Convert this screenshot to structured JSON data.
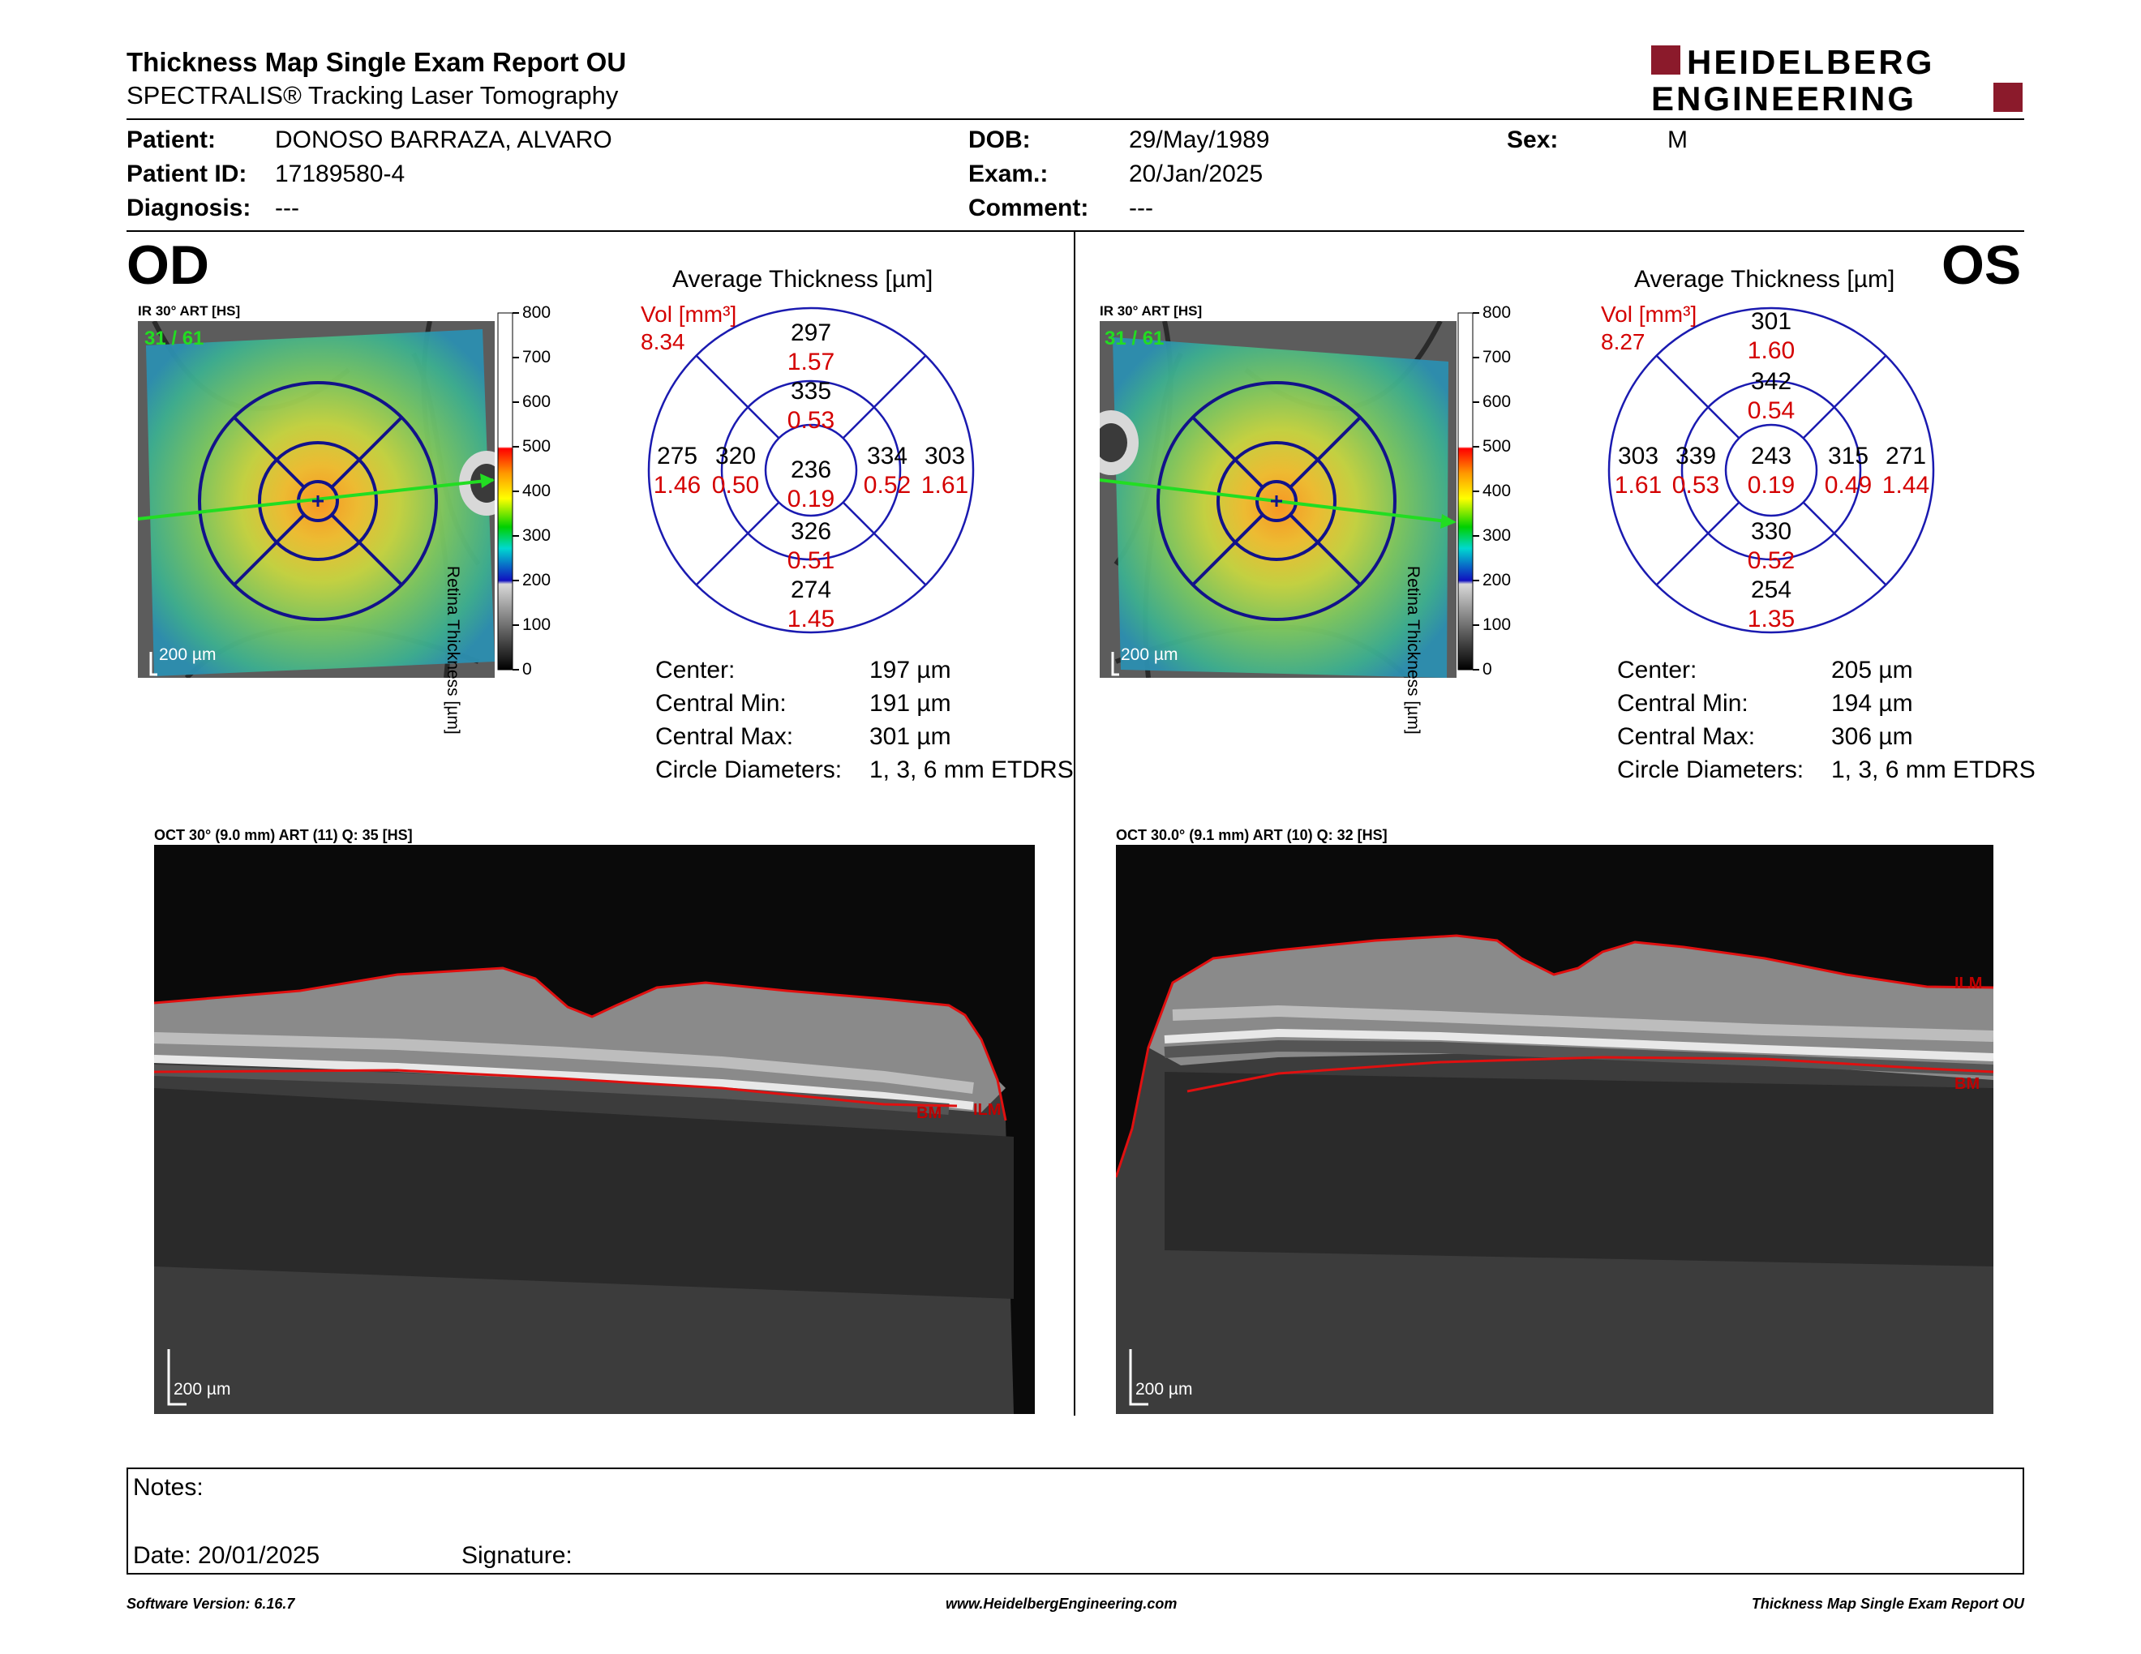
{
  "header": {
    "title": "Thickness Map Single Exam Report OU",
    "subtitle": "SPECTRALIS® Tracking Laser Tomography",
    "logo_line1": "HEIDELBERG",
    "logo_line2": "ENGINEERING"
  },
  "patient": {
    "patient_label": "Patient:",
    "patient_value": "DONOSO BARRAZA, ALVARO",
    "id_label": "Patient ID:",
    "id_value": "17189580-4",
    "diagnosis_label": "Diagnosis:",
    "diagnosis_value": "---",
    "dob_label": "DOB:",
    "dob_value": "29/May/1989",
    "exam_label": "Exam.:",
    "exam_value": "20/Jan/2025",
    "comment_label": "Comment:",
    "comment_value": "---",
    "sex_label": "Sex:",
    "sex_value": "M"
  },
  "scale_ticks": [
    "800",
    "700",
    "600",
    "500",
    "400",
    "300",
    "200",
    "100",
    "0"
  ],
  "scale_axis_label": "Retina Thickness [µm]",
  "colors": {
    "circle": "#1a1ab0",
    "volume": "#d40000",
    "seg_line": "#e01010",
    "scan_arrow": "#22dd22"
  },
  "od": {
    "eye_label": "OD",
    "ir_caption": "IR 30° ART [HS]",
    "ir_frames": "31 / 61",
    "ir_scale": "200 µm",
    "avg_title": "Average Thickness [µm]",
    "vol_label": "Vol [mm³]",
    "vol_total": "8.34",
    "sectors": {
      "center": {
        "t": "236",
        "v": "0.19"
      },
      "inner_sup": {
        "t": "335",
        "v": "0.53"
      },
      "inner_inf": {
        "t": "326",
        "v": "0.51"
      },
      "inner_left": {
        "t": "320",
        "v": "0.50"
      },
      "inner_right": {
        "t": "334",
        "v": "0.52"
      },
      "outer_sup": {
        "t": "297",
        "v": "1.57"
      },
      "outer_inf": {
        "t": "274",
        "v": "1.45"
      },
      "outer_left": {
        "t": "275",
        "v": "1.46"
      },
      "outer_right": {
        "t": "303",
        "v": "1.61"
      }
    },
    "stats": {
      "center_label": "Center:",
      "center_value": "197 µm",
      "min_label": "Central Min:",
      "min_value": "191 µm",
      "max_label": "Central Max:",
      "max_value": "301 µm",
      "diam_label": "Circle Diameters:",
      "diam_value": "1, 3, 6 mm ETDRS"
    },
    "oct_caption": "OCT 30° (9.0 mm) ART (11) Q: 35 [HS]",
    "oct_scale": "200 µm",
    "ilm_label": "ILM",
    "bm_label": "BM"
  },
  "os": {
    "eye_label": "OS",
    "ir_caption": "IR 30° ART [HS]",
    "ir_frames": "31 / 61",
    "ir_scale": "200 µm",
    "avg_title": "Average Thickness [µm]",
    "vol_label": "Vol [mm³]",
    "vol_total": "8.27",
    "sectors": {
      "center": {
        "t": "243",
        "v": "0.19"
      },
      "inner_sup": {
        "t": "342",
        "v": "0.54"
      },
      "inner_inf": {
        "t": "330",
        "v": "0.52"
      },
      "inner_left": {
        "t": "339",
        "v": "0.53"
      },
      "inner_right": {
        "t": "315",
        "v": "0.49"
      },
      "outer_sup": {
        "t": "301",
        "v": "1.60"
      },
      "outer_inf": {
        "t": "254",
        "v": "1.35"
      },
      "outer_left": {
        "t": "303",
        "v": "1.61"
      },
      "outer_right": {
        "t": "271",
        "v": "1.44"
      }
    },
    "stats": {
      "center_label": "Center:",
      "center_value": "205 µm",
      "min_label": "Central Min:",
      "min_value": "194 µm",
      "max_label": "Central Max:",
      "max_value": "306 µm",
      "diam_label": "Circle Diameters:",
      "diam_value": "1, 3, 6 mm ETDRS"
    },
    "oct_caption": "OCT 30.0° (9.1 mm) ART (10) Q: 32 [HS]",
    "oct_scale": "200 µm",
    "ilm_label": "ILM",
    "bm_label": "BM"
  },
  "notes": {
    "notes_label": "Notes:",
    "date_label": "Date: 20/01/2025",
    "signature_label": "Signature:"
  },
  "footer": {
    "software": "Software Version: 6.16.7",
    "website": "www.HeidelbergEngineering.com",
    "report_name": "Thickness Map Single Exam Report OU"
  }
}
